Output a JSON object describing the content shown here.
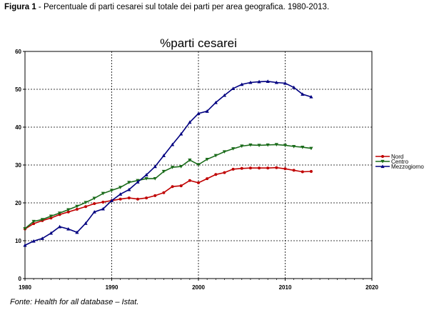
{
  "figure": {
    "label": "Figura 1",
    "caption": " - Percentuale di parti cesarei sul totale dei parti per area geografica. 1980-2013.",
    "source": "Fonte: Health for all database – Istat."
  },
  "chart_data": {
    "type": "line",
    "title": "%parti cesarei",
    "xlabel": "",
    "ylabel": "",
    "xlim": [
      1980,
      2020
    ],
    "ylim": [
      0,
      60
    ],
    "x_ticks": [
      1980,
      1990,
      2000,
      2010,
      2020
    ],
    "y_ticks": [
      0,
      10,
      20,
      30,
      40,
      50,
      60
    ],
    "grid": true,
    "legend_position": "right",
    "x": [
      1980,
      1981,
      1982,
      1983,
      1984,
      1985,
      1986,
      1987,
      1988,
      1989,
      1990,
      1991,
      1992,
      1993,
      1994,
      1995,
      1996,
      1997,
      1998,
      1999,
      2000,
      2001,
      2002,
      2003,
      2004,
      2005,
      2006,
      2007,
      2008,
      2009,
      2010,
      2011,
      2012,
      2013
    ],
    "series": [
      {
        "name": "Nord",
        "color": "#c00000",
        "marker": "circle",
        "values": [
          13.1,
          14.5,
          15.3,
          16.0,
          16.9,
          17.6,
          18.3,
          19.0,
          19.8,
          20.2,
          20.6,
          21.0,
          21.3,
          21.0,
          21.3,
          21.9,
          22.7,
          24.3,
          24.5,
          25.9,
          25.3,
          26.4,
          27.5,
          28.0,
          28.9,
          29.1,
          29.2,
          29.2,
          29.2,
          29.3,
          29.0,
          28.6,
          28.2,
          28.3
        ]
      },
      {
        "name": "Centro",
        "color": "#1a6b1a",
        "marker": "triangle-down",
        "values": [
          13.2,
          15.1,
          15.6,
          16.5,
          17.3,
          18.2,
          19.1,
          20.1,
          21.2,
          22.5,
          23.3,
          24.1,
          25.4,
          25.9,
          26.4,
          26.4,
          28.3,
          29.4,
          29.6,
          31.3,
          30.1,
          31.5,
          32.5,
          33.5,
          34.3,
          35.0,
          35.3,
          35.2,
          35.3,
          35.4,
          35.2,
          34.9,
          34.7,
          34.4
        ]
      },
      {
        "name": "Mezzogiorno",
        "color": "#000080",
        "marker": "triangle-up",
        "values": [
          8.8,
          9.9,
          10.6,
          12.0,
          13.7,
          13.1,
          12.2,
          14.6,
          17.6,
          18.4,
          20.6,
          22.3,
          23.5,
          25.5,
          27.4,
          29.6,
          32.5,
          35.4,
          38.2,
          41.3,
          43.6,
          44.2,
          46.5,
          48.4,
          50.2,
          51.3,
          51.8,
          52.0,
          52.1,
          51.8,
          51.6,
          50.5,
          48.7,
          48.0
        ]
      }
    ]
  }
}
